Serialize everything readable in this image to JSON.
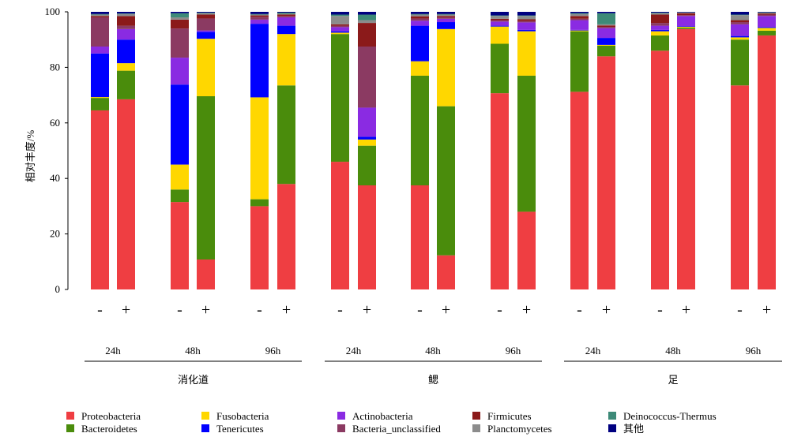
{
  "chart_data": {
    "type": "bar",
    "stacked": true,
    "ylabel": "相对丰度/%",
    "ylim": [
      0,
      100
    ],
    "yticks": [
      0,
      20,
      40,
      60,
      80,
      100
    ],
    "treatment_labels": [
      "-",
      "+"
    ],
    "legend_placement": "bottom",
    "tissues": [
      {
        "name": "消化道",
        "times": [
          "24h",
          "48h",
          "96h"
        ]
      },
      {
        "name": "鳃",
        "times": [
          "24h",
          "48h",
          "96h"
        ]
      },
      {
        "name": "足",
        "times": [
          "24h",
          "48h",
          "96h"
        ]
      }
    ],
    "series": [
      {
        "name": "Proteobacteria",
        "color": "#ef3e42"
      },
      {
        "name": "Bacteroidetes",
        "color": "#4a8c0c"
      },
      {
        "name": "Fusobacteria",
        "color": "#ffd700"
      },
      {
        "name": "Tenericutes",
        "color": "#0000ff"
      },
      {
        "name": "Actinobacteria",
        "color": "#8a2be2"
      },
      {
        "name": "Bacteria_unclassified",
        "color": "#8b3a62"
      },
      {
        "name": "Firmicutes",
        "color": "#8b1a1a"
      },
      {
        "name": "Planctomycetes",
        "color": "#8c8c8c"
      },
      {
        "name": "Deinococcus-Thermus",
        "color": "#3d8a78"
      },
      {
        "name": "其他",
        "color": "#000080"
      }
    ],
    "bars": [
      {
        "tissue": "消化道",
        "time": "24h",
        "treatment": "-",
        "values": {
          "Proteobacteria": 64.5,
          "Bacteroidetes": 4.5,
          "Fusobacteria": 0.3,
          "Tenericutes": 15.7,
          "Actinobacteria": 2.5,
          "Bacteria_unclassified": 10.5,
          "Firmicutes": 0.5,
          "Planctomycetes": 0.5,
          "Deinococcus-Thermus": 0.2,
          "其他": 0.8
        }
      },
      {
        "tissue": "消化道",
        "time": "24h",
        "treatment": "+",
        "values": {
          "Proteobacteria": 68.5,
          "Bacteroidetes": 10.3,
          "Fusobacteria": 2.7,
          "Tenericutes": 8.5,
          "Actinobacteria": 3.8,
          "Bacteria_unclassified": 1.2,
          "Firmicutes": 3.5,
          "Planctomycetes": 0.7,
          "Deinococcus-Thermus": 0.2,
          "其他": 0.6
        }
      },
      {
        "tissue": "消化道",
        "time": "48h",
        "treatment": "-",
        "values": {
          "Proteobacteria": 31.5,
          "Bacteroidetes": 4.5,
          "Fusobacteria": 9.0,
          "Tenericutes": 28.8,
          "Actinobacteria": 9.7,
          "Bacteria_unclassified": 10.5,
          "Firmicutes": 3.2,
          "Planctomycetes": 0.8,
          "Deinococcus-Thermus": 1.5,
          "其他": 0.5
        }
      },
      {
        "tissue": "消化道",
        "time": "48h",
        "treatment": "+",
        "values": {
          "Proteobacteria": 10.8,
          "Bacteroidetes": 58.8,
          "Fusobacteria": 20.7,
          "Tenericutes": 2.5,
          "Actinobacteria": 0.5,
          "Bacteria_unclassified": 4.3,
          "Firmicutes": 1.4,
          "Planctomycetes": 0.5,
          "Deinococcus-Thermus": 0.2,
          "其他": 0.3
        }
      },
      {
        "tissue": "消化道",
        "time": "96h",
        "treatment": "-",
        "values": {
          "Proteobacteria": 30.0,
          "Bacteroidetes": 2.5,
          "Fusobacteria": 36.7,
          "Tenericutes": 26.5,
          "Actinobacteria": 1.5,
          "Bacteria_unclassified": 1.0,
          "Firmicutes": 0.5,
          "Planctomycetes": 0.3,
          "Deinococcus-Thermus": 0.2,
          "其他": 0.8
        }
      },
      {
        "tissue": "消化道",
        "time": "96h",
        "treatment": "+",
        "values": {
          "Proteobacteria": 38.0,
          "Bacteroidetes": 35.5,
          "Fusobacteria": 18.5,
          "Tenericutes": 3.0,
          "Actinobacteria": 3.0,
          "Bacteria_unclassified": 0.5,
          "Firmicutes": 0.5,
          "Planctomycetes": 0.3,
          "Deinococcus-Thermus": 0.4,
          "其他": 0.3
        }
      },
      {
        "tissue": "鳃",
        "time": "24h",
        "treatment": "-",
        "values": {
          "Proteobacteria": 46.0,
          "Bacteroidetes": 46.0,
          "Fusobacteria": 0.5,
          "Tenericutes": 0.5,
          "Actinobacteria": 1.5,
          "Bacteria_unclassified": 0.5,
          "Firmicutes": 0.5,
          "Planctomycetes": 3.0,
          "Deinococcus-Thermus": 0.5,
          "其他": 1.0
        }
      },
      {
        "tissue": "鳃",
        "time": "24h",
        "treatment": "+",
        "values": {
          "Proteobacteria": 37.5,
          "Bacteroidetes": 14.3,
          "Fusobacteria": 2.2,
          "Tenericutes": 1.0,
          "Actinobacteria": 10.5,
          "Bacteria_unclassified": 22.0,
          "Firmicutes": 8.5,
          "Planctomycetes": 1.0,
          "Deinococcus-Thermus": 2.0,
          "其他": 1.0
        }
      },
      {
        "tissue": "鳃",
        "time": "48h",
        "treatment": "-",
        "values": {
          "Proteobacteria": 37.5,
          "Bacteroidetes": 39.5,
          "Fusobacteria": 5.2,
          "Tenericutes": 12.8,
          "Actinobacteria": 1.8,
          "Bacteria_unclassified": 0.8,
          "Firmicutes": 0.8,
          "Planctomycetes": 0.6,
          "Deinococcus-Thermus": 0.2,
          "其他": 0.8
        }
      },
      {
        "tissue": "鳃",
        "time": "48h",
        "treatment": "+",
        "values": {
          "Proteobacteria": 12.3,
          "Bacteroidetes": 53.7,
          "Fusobacteria": 27.8,
          "Tenericutes": 2.5,
          "Actinobacteria": 1.2,
          "Bacteria_unclassified": 0.5,
          "Firmicutes": 0.5,
          "Planctomycetes": 0.5,
          "Deinococcus-Thermus": 0.2,
          "其他": 0.8
        }
      },
      {
        "tissue": "鳃",
        "time": "96h",
        "treatment": "-",
        "values": {
          "Proteobacteria": 70.7,
          "Bacteroidetes": 17.8,
          "Fusobacteria": 6.2,
          "Tenericutes": 0.3,
          "Actinobacteria": 1.5,
          "Bacteria_unclassified": 0.5,
          "Firmicutes": 0.5,
          "Planctomycetes": 1.0,
          "Deinococcus-Thermus": 0.2,
          "其他": 1.3
        }
      },
      {
        "tissue": "鳃",
        "time": "96h",
        "treatment": "+",
        "values": {
          "Proteobacteria": 28.0,
          "Bacteroidetes": 49.0,
          "Fusobacteria": 16.0,
          "Tenericutes": 0.5,
          "Actinobacteria": 2.7,
          "Bacteria_unclassified": 0.5,
          "Firmicutes": 0.6,
          "Planctomycetes": 1.2,
          "Deinococcus-Thermus": 0.2,
          "其他": 1.3
        }
      },
      {
        "tissue": "足",
        "time": "24h",
        "treatment": "-",
        "values": {
          "Proteobacteria": 71.2,
          "Bacteroidetes": 21.8,
          "Fusobacteria": 0.3,
          "Tenericutes": 0.2,
          "Actinobacteria": 3.5,
          "Bacteria_unclassified": 0.5,
          "Firmicutes": 1.0,
          "Planctomycetes": 0.7,
          "Deinococcus-Thermus": 0.3,
          "其他": 0.5
        }
      },
      {
        "tissue": "足",
        "time": "24h",
        "treatment": "+",
        "values": {
          "Proteobacteria": 84.0,
          "Bacteroidetes": 3.8,
          "Fusobacteria": 0.3,
          "Tenericutes": 2.5,
          "Actinobacteria": 3.5,
          "Bacteria_unclassified": 0.5,
          "Firmicutes": 0.5,
          "Planctomycetes": 0.4,
          "Deinococcus-Thermus": 4.0,
          "其他": 0.5
        }
      },
      {
        "tissue": "足",
        "time": "48h",
        "treatment": "-",
        "values": {
          "Proteobacteria": 86.0,
          "Bacteroidetes": 5.5,
          "Fusobacteria": 1.5,
          "Tenericutes": 0.5,
          "Actinobacteria": 1.5,
          "Bacteria_unclassified": 1.0,
          "Firmicutes": 3.0,
          "Planctomycetes": 0.5,
          "Deinococcus-Thermus": 0.2,
          "其他": 0.3
        }
      },
      {
        "tissue": "足",
        "time": "48h",
        "treatment": "+",
        "values": {
          "Proteobacteria": 93.8,
          "Bacteroidetes": 0.5,
          "Fusobacteria": 0.3,
          "Tenericutes": 0.2,
          "Actinobacteria": 3.7,
          "Bacteria_unclassified": 0.3,
          "Firmicutes": 0.7,
          "Planctomycetes": 0.2,
          "Deinococcus-Thermus": 0.1,
          "其他": 0.2
        }
      },
      {
        "tissue": "足",
        "time": "96h",
        "treatment": "-",
        "values": {
          "Proteobacteria": 73.5,
          "Bacteroidetes": 16.5,
          "Fusobacteria": 0.8,
          "Tenericutes": 0.5,
          "Actinobacteria": 4.2,
          "Bacteria_unclassified": 0.8,
          "Firmicutes": 0.7,
          "Planctomycetes": 1.8,
          "Deinococcus-Thermus": 0.2,
          "其他": 1.0
        }
      },
      {
        "tissue": "足",
        "time": "96h",
        "treatment": "+",
        "values": {
          "Proteobacteria": 91.5,
          "Bacteroidetes": 1.7,
          "Fusobacteria": 1.0,
          "Tenericutes": 0.3,
          "Actinobacteria": 4.0,
          "Bacteria_unclassified": 0.5,
          "Firmicutes": 0.4,
          "Planctomycetes": 0.2,
          "Deinococcus-Thermus": 0.2,
          "其他": 0.2
        }
      }
    ]
  }
}
